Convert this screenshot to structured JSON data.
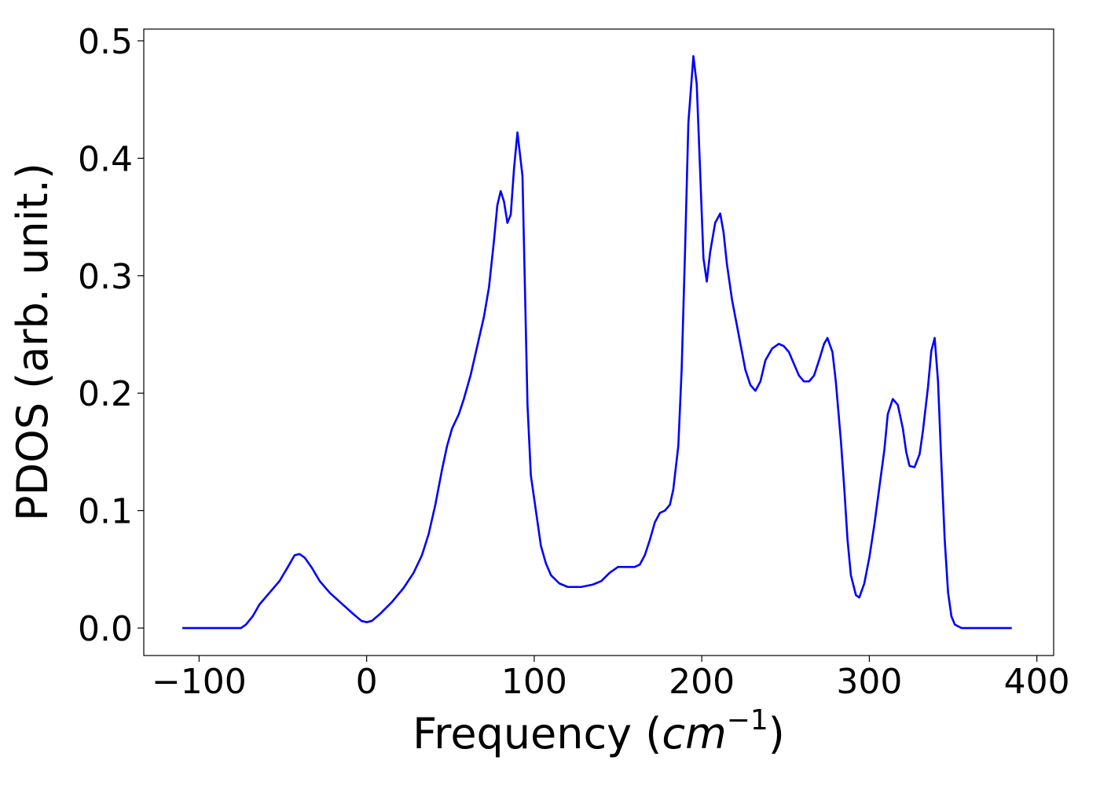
{
  "chart_data": {
    "type": "line",
    "xlabel_parts": [
      "Frequency (",
      "cm",
      "−1",
      ")"
    ],
    "ylabel": "PDOS (arb. unit.)",
    "xlim": [
      -133,
      410
    ],
    "ylim": [
      -0.0234,
      0.51
    ],
    "xticks": [
      {
        "value": -100,
        "label": "−100"
      },
      0,
      100,
      200,
      300,
      400
    ],
    "yticks": [
      {
        "value": 0,
        "label": "0.0"
      },
      0.1,
      0.2,
      0.3,
      0.4,
      0.5
    ],
    "grid": false,
    "series": [
      {
        "color": "#0000ff",
        "x": [
          -110,
          -100,
          -90,
          -80,
          -75,
          -72,
          -68,
          -64,
          -58,
          -52,
          -47,
          -43,
          -40,
          -37,
          -33,
          -28,
          -22,
          -15,
          -8,
          -3,
          0,
          3,
          8,
          15,
          22,
          28,
          33,
          37,
          41,
          45,
          48,
          51,
          55,
          58,
          62,
          66,
          70,
          73,
          76,
          78,
          80,
          82,
          84,
          86,
          88,
          90,
          93,
          96,
          98,
          101,
          104,
          107,
          110,
          115,
          120,
          128,
          135,
          140,
          145,
          150,
          155,
          160,
          163,
          166,
          169,
          172,
          175,
          178,
          181,
          183,
          186,
          188,
          190,
          192,
          195,
          197,
          199,
          201,
          203,
          205,
          208,
          211,
          213,
          215,
          218,
          222,
          226,
          229,
          232,
          235,
          238,
          242,
          246,
          249,
          252,
          255,
          258,
          261,
          264,
          267,
          270,
          273,
          275,
          278,
          280,
          283,
          285,
          287,
          289,
          292,
          294,
          297,
          300,
          303,
          306,
          309,
          311,
          314,
          317,
          320,
          322,
          324,
          327,
          330,
          332,
          335,
          337,
          339,
          341,
          343,
          345,
          347,
          349,
          351,
          355,
          370,
          385
        ],
        "values": [
          0,
          0,
          0,
          0,
          0,
          0.003,
          0.01,
          0.02,
          0.03,
          0.04,
          0.052,
          0.062,
          0.063,
          0.06,
          0.052,
          0.04,
          0.03,
          0.021,
          0.012,
          0.006,
          0.005,
          0.006,
          0.012,
          0.022,
          0.034,
          0.047,
          0.062,
          0.08,
          0.105,
          0.135,
          0.155,
          0.17,
          0.182,
          0.195,
          0.215,
          0.24,
          0.265,
          0.29,
          0.33,
          0.36,
          0.372,
          0.363,
          0.345,
          0.352,
          0.392,
          0.422,
          0.385,
          0.19,
          0.13,
          0.1,
          0.07,
          0.055,
          0.045,
          0.038,
          0.035,
          0.035,
          0.037,
          0.04,
          0.047,
          0.052,
          0.052,
          0.052,
          0.054,
          0.062,
          0.075,
          0.09,
          0.098,
          0.1,
          0.105,
          0.118,
          0.155,
          0.22,
          0.32,
          0.43,
          0.487,
          0.463,
          0.39,
          0.315,
          0.295,
          0.32,
          0.345,
          0.353,
          0.337,
          0.31,
          0.28,
          0.25,
          0.22,
          0.207,
          0.202,
          0.21,
          0.228,
          0.238,
          0.242,
          0.24,
          0.235,
          0.225,
          0.215,
          0.21,
          0.21,
          0.215,
          0.228,
          0.242,
          0.247,
          0.235,
          0.21,
          0.16,
          0.12,
          0.075,
          0.045,
          0.028,
          0.026,
          0.038,
          0.06,
          0.088,
          0.12,
          0.152,
          0.182,
          0.195,
          0.19,
          0.17,
          0.15,
          0.138,
          0.137,
          0.148,
          0.168,
          0.205,
          0.236,
          0.247,
          0.21,
          0.14,
          0.075,
          0.03,
          0.01,
          0.003,
          0,
          0,
          0
        ]
      }
    ]
  }
}
